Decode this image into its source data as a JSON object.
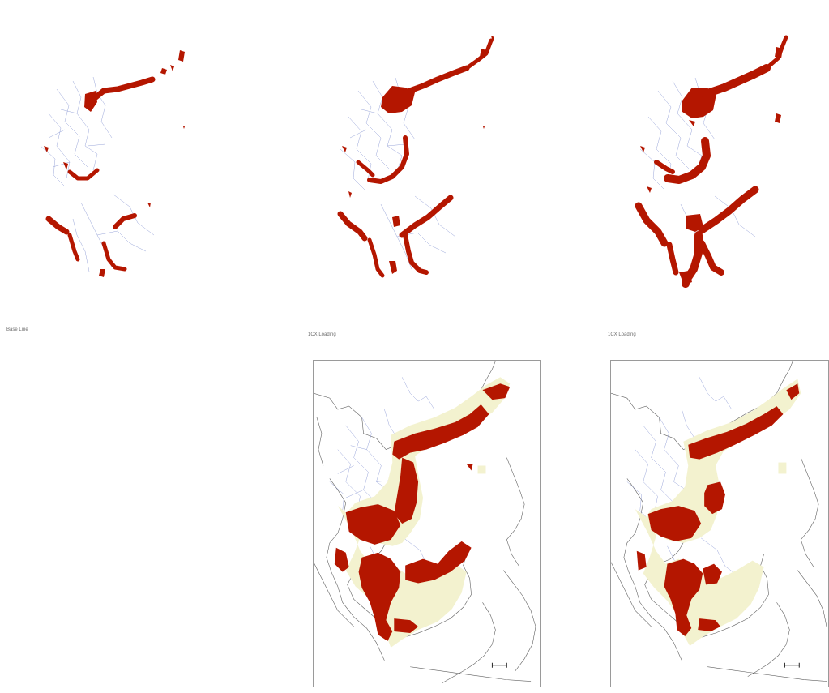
{
  "panels": [
    {
      "id": "baseline",
      "caption": "Base Line"
    },
    {
      "id": "loading-1",
      "caption": "1CX Loading"
    },
    {
      "id": "loading-2",
      "caption": "1CX Loading"
    }
  ],
  "colors": {
    "impact_area": "#b41600",
    "affected_zone": "#f3f2cf",
    "rivers": "#7f8fd0",
    "coastline": "#2b2b2b"
  }
}
